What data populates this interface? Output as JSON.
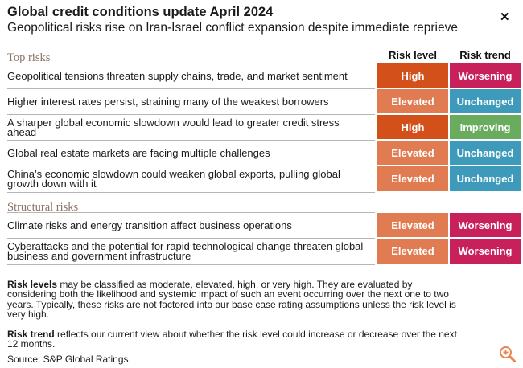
{
  "header": {
    "title": "Global credit conditions update April 2024",
    "subtitle": "Geopolitical risks rise on Iran-Israel conflict expansion despite immediate reprieve",
    "close_icon": "close-icon"
  },
  "columns": {
    "risk_level": "Risk level",
    "risk_trend": "Risk trend"
  },
  "sections": {
    "top": "Top risks",
    "structural": "Structural risks"
  },
  "top_risks": [
    {
      "text": "Geopolitical tensions threaten supply chains, trade, and market sentiment",
      "level": "High",
      "trend": "Worsening"
    },
    {
      "text": "Higher interest rates persist, straining many of the weakest borrowers",
      "level": "Elevated",
      "trend": "Unchanged"
    },
    {
      "text": "A sharper global economic slowdown would lead to greater credit stress ahead",
      "level": "High",
      "trend": "Improving"
    },
    {
      "text": "Global real estate markets are facing multiple challenges",
      "level": "Elevated",
      "trend": "Unchanged"
    },
    {
      "text": "China’s economic slowdown could weaken global exports, pulling global growth down with it",
      "level": "Elevated",
      "trend": "Unchanged"
    }
  ],
  "structural_risks": [
    {
      "text": "Climate risks and energy transition affect business operations",
      "level": "Elevated",
      "trend": "Worsening"
    },
    {
      "text": "Cyberattacks and the potential for rapid technological change threaten global business and government infrastructure",
      "level": "Elevated",
      "trend": "Worsening"
    }
  ],
  "colors": {
    "High": "#d4501a",
    "Elevated": "#e07b52",
    "Worsening": "#c8205a",
    "Unchanged": "#3e9aba",
    "Improving": "#6aac5e"
  },
  "footer": {
    "risk_levels_term": "Risk levels",
    "risk_levels_text": " may be classified as moderate, elevated, high, or very high. They are evaluated by considering both the likelihood and systemic impact of such an event occurring over the next one to two years. Typically, these risks are not factored into our base case rating assumptions unless the risk level is very high.",
    "risk_trend_term": "Risk trend",
    "risk_trend_text": " reflects our current view about whether the risk level could increase or decrease over the next 12 months.",
    "source": "Source: S&P Global Ratings."
  },
  "zoom_icon": "zoom-in-icon"
}
